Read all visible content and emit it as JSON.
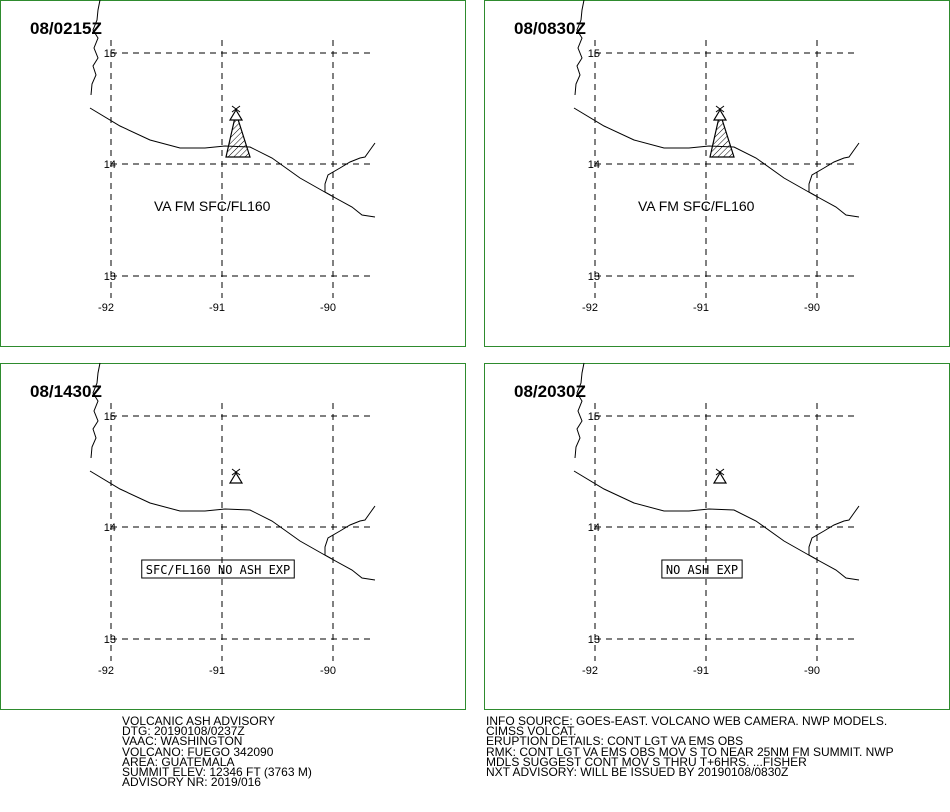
{
  "panels": [
    {
      "time": "08/0215Z",
      "va_text": "VA FM SFC/FL160",
      "box_text": "",
      "ash_area": true
    },
    {
      "time": "08/0830Z",
      "va_text": "VA FM SFC/FL160",
      "box_text": "",
      "ash_area": true
    },
    {
      "time": "08/1430Z",
      "va_text": "",
      "box_text": "SFC/FL160 NO ASH EXP",
      "ash_area": false
    },
    {
      "time": "08/2030Z",
      "va_text": "",
      "box_text": "NO ASH EXP",
      "ash_area": false
    }
  ],
  "grid": {
    "lat_labels": [
      "15",
      "14",
      "13"
    ],
    "lon_labels": [
      "-92",
      "-91",
      "-90"
    ]
  },
  "volcano_symbol": "volcano-triangle-icon",
  "advisory_left": [
    "VOLCANIC ASH ADVISORY",
    "DTG: 20190108/0237Z",
    "VAAC: WASHINGTON",
    "VOLCANO: FUEGO 342090",
    "AREA: GUATEMALA",
    "SUMMIT ELEV: 12346 FT (3763 M)",
    "ADVISORY NR: 2019/016"
  ],
  "advisory_right": [
    "INFO SOURCE: GOES-EAST. VOLCANO WEB CAMERA. NWP MODELS.",
    "CIMSS VOLCAT.",
    "ERUPTION DETAILS: CONT LGT VA EMS OBS",
    "RMK: CONT LGT VA EMS OBS MOV S TO NEAR 25NM FM SUMMIT. NWP",
    "MDLS SUGGEST CONT MOV S THRU T+6HRS. ...FISHER",
    "NXT ADVISORY: WILL BE ISSUED BY 20190108/0830Z"
  ]
}
